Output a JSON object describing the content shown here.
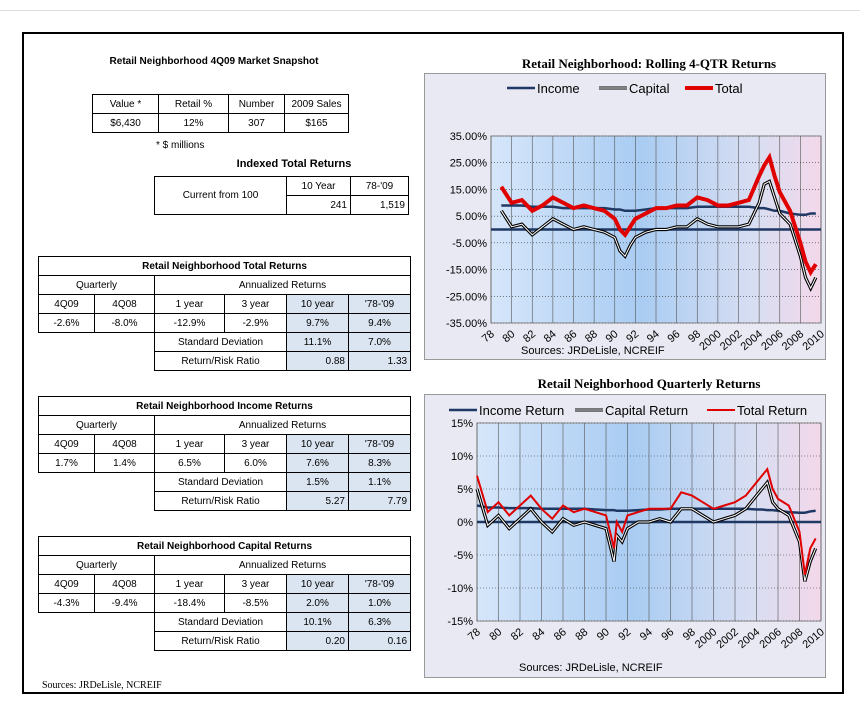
{
  "snapshot": {
    "title": "Retail Neighborhood 4Q09 Market Snapshot",
    "headers": [
      "Value *",
      "Retail %",
      "Number",
      "2009 Sales"
    ],
    "values": [
      "$6,430",
      "12%",
      "307",
      "$165"
    ],
    "note": "* $ millions"
  },
  "indexed": {
    "title": "Indexed Total Returns",
    "label": "Current from 100",
    "headers": [
      "10 Year",
      "78-'09"
    ],
    "values": [
      "241",
      "1,519"
    ]
  },
  "returns_tables": [
    {
      "title": "Retail Neighborhood Total Returns",
      "quarterly_label": "Quarterly",
      "annualized_label": "Annualized Returns",
      "headers": [
        "4Q09",
        "4Q08",
        "1 year",
        "3 year",
        "10 year",
        "'78-'09"
      ],
      "values": [
        "-2.6%",
        "-8.0%",
        "-12.9%",
        "-2.9%",
        "9.7%",
        "9.4%"
      ],
      "sd_label": "Standard Deviation",
      "sd": [
        "11.1%",
        "7.0%"
      ],
      "rr_label": "Return/Risk Ratio",
      "rr": [
        "0.88",
        "1.33"
      ]
    },
    {
      "title": "Retail Neighborhood Income Returns",
      "quarterly_label": "Quarterly",
      "annualized_label": "Annualized Returns",
      "headers": [
        "4Q09",
        "4Q08",
        "1 year",
        "3 year",
        "10 year",
        "'78-'09"
      ],
      "values": [
        "1.7%",
        "1.4%",
        "6.5%",
        "6.0%",
        "7.6%",
        "8.3%"
      ],
      "sd_label": "Standard Deviation",
      "sd": [
        "1.5%",
        "1.1%"
      ],
      "rr_label": "Return/Risk Ratio",
      "rr": [
        "5.27",
        "7.79"
      ]
    },
    {
      "title": "Retail Neighborhood Capital Returns",
      "quarterly_label": "Quarterly",
      "annualized_label": "Annualized Returns",
      "headers": [
        "4Q09",
        "4Q08",
        "1 year",
        "3 year",
        "10 year",
        "'78-'09"
      ],
      "values": [
        "-4.3%",
        "-9.4%",
        "-18.4%",
        "-8.5%",
        "2.0%",
        "1.0%"
      ],
      "sd_label": "Standard Deviation",
      "sd": [
        "10.1%",
        "6.3%"
      ],
      "rr_label": "Return/Risk Ratio",
      "rr": [
        "0.20",
        "0.16"
      ]
    }
  ],
  "footer_source": "Sources: JRDeLisle, NCREIF",
  "colors": {
    "income": "#1f3864",
    "capital": "#000000",
    "total": "#e00000",
    "panel": "#dbe5f1"
  },
  "chart_data": [
    {
      "type": "line",
      "title": "Retail Neighborhood:  Rolling 4-QTR Returns",
      "source": "Sources: JRDeLisle, NCREIF",
      "x_tick_labels": [
        "78",
        "80",
        "82",
        "84",
        "86",
        "88",
        "90",
        "92",
        "94",
        "96",
        "98",
        "2000",
        "2002",
        "2004",
        "2006",
        "2008",
        "2010"
      ],
      "x_range": [
        1978,
        2010
      ],
      "y_ticks": [
        "35.00%",
        "25.00%",
        "15.00%",
        "5.00%",
        "-5.00%",
        "-15.00%",
        "-25.00%",
        "-35.00%"
      ],
      "ylim": [
        -35,
        35
      ],
      "legend_placement": "top",
      "x": [
        1979,
        1980,
        1981,
        1982,
        1983,
        1984,
        1985,
        1986,
        1987,
        1988,
        1989,
        1990,
        1990.5,
        1991,
        1991.5,
        1992,
        1993,
        1994,
        1995,
        1996,
        1997,
        1998,
        1999,
        2000,
        2001,
        2002,
        2003,
        2004,
        2004.5,
        2005,
        2005.5,
        2006,
        2007,
        2008,
        2008.5,
        2009,
        2009.5
      ],
      "series": [
        {
          "name": "Income",
          "values": [
            9,
            9,
            9,
            8.5,
            8.5,
            8.5,
            8,
            8,
            8,
            8,
            8,
            7.5,
            7.5,
            7,
            7,
            7,
            7.5,
            8,
            8,
            8,
            8,
            8.5,
            8.5,
            8.5,
            8.5,
            8.5,
            8.5,
            8,
            8,
            7.5,
            7,
            7,
            6,
            5.5,
            5.5,
            6,
            6
          ]
        },
        {
          "name": "Capital",
          "values": [
            7,
            1,
            2,
            -2,
            1,
            4,
            2,
            0,
            1,
            0,
            -1,
            -3,
            -8,
            -10,
            -6,
            -3,
            -1,
            0,
            0,
            1,
            1,
            4,
            2,
            1,
            1,
            1,
            2,
            10,
            17,
            18,
            12,
            6,
            2,
            -10,
            -18,
            -22,
            -18
          ]
        },
        {
          "name": "Total",
          "values": [
            16,
            10,
            11,
            7,
            9,
            12,
            10,
            8,
            9,
            8,
            7,
            4,
            0,
            -2,
            1,
            4,
            6,
            8,
            8,
            9,
            9,
            12,
            11,
            9,
            9,
            10,
            11,
            20,
            24,
            27,
            20,
            14,
            7,
            -5,
            -12,
            -16,
            -13
          ]
        }
      ]
    },
    {
      "type": "line",
      "title": "Retail Neighborhood Quarterly Returns",
      "source": "Sources: JRDeLisle, NCREIF",
      "x_tick_labels": [
        "78",
        "80",
        "82",
        "84",
        "86",
        "88",
        "90",
        "92",
        "94",
        "96",
        "98",
        "2000",
        "2002",
        "2004",
        "2006",
        "2008",
        "2010"
      ],
      "x_range": [
        1978,
        2010
      ],
      "y_ticks": [
        "15%",
        "10%",
        "5%",
        "0%",
        "-5%",
        "-10%",
        "-15%"
      ],
      "ylim": [
        -15,
        15
      ],
      "legend_placement": "top",
      "x": [
        1978,
        1979,
        1980,
        1981,
        1982,
        1983,
        1984,
        1985,
        1986,
        1987,
        1988,
        1989,
        1990,
        1990.75,
        1991,
        1991.5,
        1992,
        1993,
        1994,
        1995,
        1996,
        1997,
        1998,
        1999,
        2000,
        2001,
        2002,
        2003,
        2004,
        2004.5,
        2005,
        2005.5,
        2006,
        2007,
        2008,
        2008.5,
        2009,
        2009.5
      ],
      "series": [
        {
          "name": "Income Return",
          "values": [
            2.5,
            2.2,
            2.2,
            2.1,
            2.1,
            2.1,
            2,
            2,
            2,
            2,
            2,
            1.9,
            1.8,
            1.8,
            1.7,
            1.7,
            1.7,
            1.8,
            1.9,
            1.9,
            2,
            2,
            2,
            2,
            2,
            2,
            2,
            2,
            1.9,
            1.9,
            1.8,
            1.8,
            1.7,
            1.5,
            1.4,
            1.4,
            1.6,
            1.7
          ]
        },
        {
          "name": "Capital Return",
          "values": [
            5,
            -0.5,
            1,
            -1,
            0.5,
            2,
            0,
            -1.5,
            0.5,
            -0.5,
            0,
            -0.5,
            -1,
            -6,
            -2,
            -3,
            -1,
            0,
            0,
            0.5,
            0,
            2,
            2,
            1,
            0,
            0.5,
            1,
            2,
            4,
            5,
            6,
            3,
            2,
            1,
            -3,
            -9,
            -6,
            -4
          ]
        },
        {
          "name": "Total Return",
          "values": [
            7,
            1.5,
            3,
            1,
            2.5,
            4,
            2,
            0.5,
            2.5,
            1.5,
            2,
            1.5,
            1,
            -4,
            0,
            -1.5,
            1,
            1.5,
            2,
            2,
            2,
            4.5,
            4,
            3,
            2,
            2.5,
            3,
            4,
            6,
            7,
            8,
            5,
            3.5,
            2.5,
            -1.5,
            -8,
            -4,
            -2.5
          ]
        }
      ]
    }
  ]
}
